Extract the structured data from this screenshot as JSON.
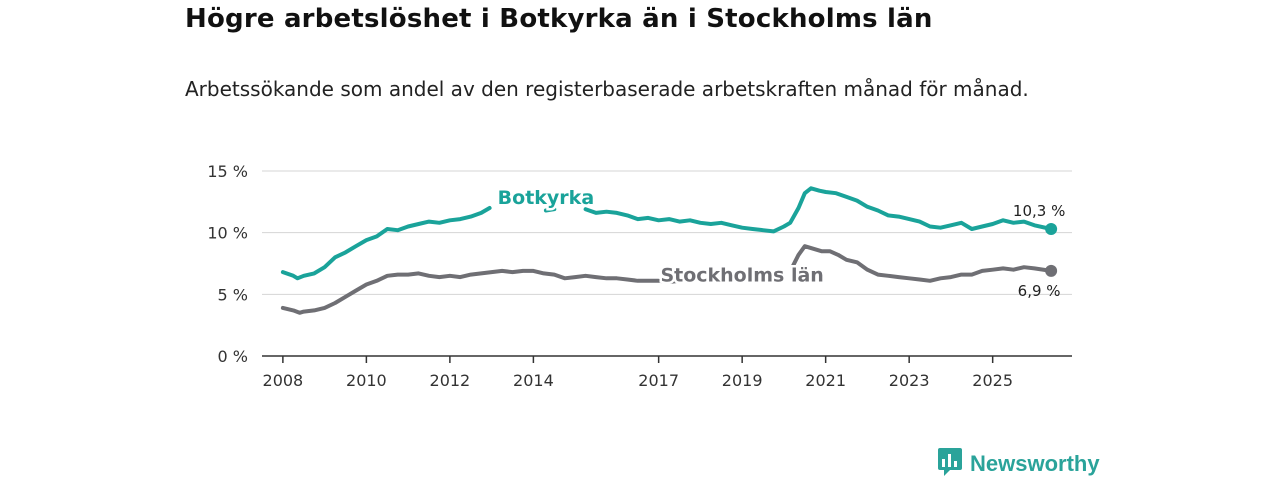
{
  "title": "Högre arbetslöshet i Botkyrka än i Stockholms län",
  "subtitle": "Arbetssökande som andel av den registerbaserade arbetskraften månad för månad.",
  "brand": {
    "name": "Newsworthy",
    "logo_icon": "bar-chart-speech-bubble-icon"
  },
  "chart_data": {
    "type": "line",
    "title": "Högre arbetslöshet i Botkyrka än i Stockholms län",
    "xlabel": "",
    "ylabel": "",
    "xlim": [
      2007.5,
      2026.9
    ],
    "ylim": [
      0,
      15
    ],
    "x_ticks": [
      2008,
      2010,
      2012,
      2014,
      2017,
      2019,
      2021,
      2023,
      2025
    ],
    "x_tick_labels": [
      "2008",
      "2010",
      "2012",
      "2014",
      "2017",
      "2019",
      "2021",
      "2023",
      "2025"
    ],
    "y_ticks": [
      0,
      5,
      10,
      15
    ],
    "y_tick_labels": [
      "0 %",
      "5 %",
      "10 %",
      "15 %"
    ],
    "grid": true,
    "series": [
      {
        "name": "Botkyrka",
        "color": "#1aa39a",
        "last_label": "10,3 %",
        "points": [
          [
            2008.0,
            6.8
          ],
          [
            2008.25,
            6.5
          ],
          [
            2008.35,
            6.3
          ],
          [
            2008.5,
            6.5
          ],
          [
            2008.75,
            6.7
          ],
          [
            2009.0,
            7.2
          ],
          [
            2009.25,
            8.0
          ],
          [
            2009.5,
            8.4
          ],
          [
            2009.75,
            8.9
          ],
          [
            2010.0,
            9.4
          ],
          [
            2010.25,
            9.7
          ],
          [
            2010.5,
            10.3
          ],
          [
            2010.75,
            10.2
          ],
          [
            2011.0,
            10.5
          ],
          [
            2011.25,
            10.7
          ],
          [
            2011.5,
            10.9
          ],
          [
            2011.75,
            10.8
          ],
          [
            2012.0,
            11.0
          ],
          [
            2012.25,
            11.1
          ],
          [
            2012.5,
            11.3
          ],
          [
            2012.75,
            11.6
          ],
          [
            2012.95,
            12.0
          ]
        ]
      },
      {
        "name": "Botkyrka",
        "color": "#1aa39a",
        "points": [
          [
            2014.3,
            11.8
          ],
          [
            2014.5,
            11.9
          ]
        ]
      },
      {
        "name": "Botkyrka",
        "color": "#1aa39a",
        "points": [
          [
            2015.25,
            11.9
          ],
          [
            2015.5,
            11.6
          ],
          [
            2015.75,
            11.7
          ],
          [
            2016.0,
            11.6
          ],
          [
            2016.25,
            11.4
          ],
          [
            2016.5,
            11.1
          ],
          [
            2016.75,
            11.2
          ],
          [
            2017.0,
            11.0
          ],
          [
            2017.25,
            11.1
          ],
          [
            2017.5,
            10.9
          ],
          [
            2017.75,
            11.0
          ],
          [
            2018.0,
            10.8
          ],
          [
            2018.25,
            10.7
          ],
          [
            2018.5,
            10.8
          ],
          [
            2018.75,
            10.6
          ],
          [
            2019.0,
            10.4
          ],
          [
            2019.25,
            10.3
          ],
          [
            2019.5,
            10.2
          ],
          [
            2019.75,
            10.1
          ],
          [
            2020.0,
            10.5
          ],
          [
            2020.15,
            10.8
          ],
          [
            2020.35,
            12.0
          ],
          [
            2020.5,
            13.2
          ],
          [
            2020.65,
            13.6
          ],
          [
            2020.85,
            13.4
          ],
          [
            2021.0,
            13.3
          ],
          [
            2021.25,
            13.2
          ],
          [
            2021.5,
            12.9
          ],
          [
            2021.75,
            12.6
          ],
          [
            2022.0,
            12.1
          ],
          [
            2022.25,
            11.8
          ],
          [
            2022.5,
            11.4
          ],
          [
            2022.75,
            11.3
          ],
          [
            2023.0,
            11.1
          ],
          [
            2023.25,
            10.9
          ],
          [
            2023.5,
            10.5
          ],
          [
            2023.75,
            10.4
          ],
          [
            2024.0,
            10.6
          ],
          [
            2024.25,
            10.8
          ],
          [
            2024.5,
            10.3
          ],
          [
            2024.75,
            10.5
          ],
          [
            2025.0,
            10.7
          ],
          [
            2025.25,
            11.0
          ],
          [
            2025.5,
            10.8
          ],
          [
            2025.75,
            10.9
          ],
          [
            2026.0,
            10.6
          ],
          [
            2026.4,
            10.3
          ]
        ]
      },
      {
        "name": "Stockholms län",
        "color": "#6f6f74",
        "last_label": "6,9 %",
        "points": [
          [
            2008.0,
            3.9
          ],
          [
            2008.25,
            3.7
          ],
          [
            2008.4,
            3.5
          ],
          [
            2008.5,
            3.6
          ],
          [
            2008.75,
            3.7
          ],
          [
            2009.0,
            3.9
          ],
          [
            2009.25,
            4.3
          ],
          [
            2009.5,
            4.8
          ],
          [
            2009.75,
            5.3
          ],
          [
            2010.0,
            5.8
          ],
          [
            2010.25,
            6.1
          ],
          [
            2010.5,
            6.5
          ],
          [
            2010.75,
            6.6
          ],
          [
            2011.0,
            6.6
          ],
          [
            2011.25,
            6.7
          ],
          [
            2011.5,
            6.5
          ],
          [
            2011.75,
            6.4
          ],
          [
            2012.0,
            6.5
          ],
          [
            2012.25,
            6.4
          ],
          [
            2012.5,
            6.6
          ],
          [
            2012.75,
            6.7
          ],
          [
            2013.0,
            6.8
          ],
          [
            2013.25,
            6.9
          ],
          [
            2013.5,
            6.8
          ],
          [
            2013.75,
            6.9
          ],
          [
            2014.0,
            6.9
          ],
          [
            2014.25,
            6.7
          ],
          [
            2014.5,
            6.6
          ],
          [
            2014.75,
            6.3
          ],
          [
            2015.0,
            6.4
          ],
          [
            2015.25,
            6.5
          ],
          [
            2015.5,
            6.4
          ],
          [
            2015.75,
            6.3
          ],
          [
            2016.0,
            6.3
          ],
          [
            2016.25,
            6.2
          ],
          [
            2016.5,
            6.1
          ],
          [
            2016.75,
            6.1
          ],
          [
            2017.0,
            6.1
          ],
          [
            2017.25,
            6.0
          ],
          [
            2017.5,
            6.1
          ],
          [
            2017.75,
            6.1
          ]
        ]
      },
      {
        "name": "Stockholms län",
        "color": "#6f6f74",
        "points": [
          [
            2020.2,
            7.2
          ],
          [
            2020.35,
            8.2
          ],
          [
            2020.5,
            8.9
          ],
          [
            2020.7,
            8.7
          ],
          [
            2020.9,
            8.5
          ],
          [
            2021.1,
            8.5
          ],
          [
            2021.3,
            8.2
          ],
          [
            2021.5,
            7.8
          ],
          [
            2021.75,
            7.6
          ],
          [
            2022.0,
            7.0
          ],
          [
            2022.25,
            6.6
          ],
          [
            2022.5,
            6.5
          ],
          [
            2022.75,
            6.4
          ],
          [
            2023.0,
            6.3
          ],
          [
            2023.25,
            6.2
          ],
          [
            2023.5,
            6.1
          ],
          [
            2023.75,
            6.3
          ],
          [
            2024.0,
            6.4
          ],
          [
            2024.25,
            6.6
          ],
          [
            2024.5,
            6.6
          ],
          [
            2024.75,
            6.9
          ],
          [
            2025.0,
            7.0
          ],
          [
            2025.25,
            7.1
          ],
          [
            2025.5,
            7.0
          ],
          [
            2025.75,
            7.2
          ],
          [
            2026.0,
            7.1
          ],
          [
            2026.4,
            6.9
          ]
        ]
      }
    ],
    "annotations": [
      {
        "text": "Botkyrka",
        "x": 2014.3,
        "y": 12.5,
        "color": "#1aa39a"
      },
      {
        "text": "Stockholms län",
        "x": 2019.0,
        "y": 6.2,
        "color": "#6f6f74"
      }
    ]
  }
}
